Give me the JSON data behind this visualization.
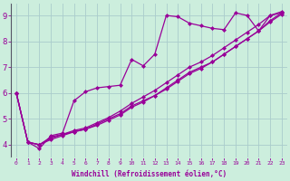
{
  "background_color": "#cceedd",
  "grid_color": "#aacccc",
  "line_color": "#990099",
  "marker": "D",
  "markersize": 2,
  "linewidth": 0.9,
  "xlabel": "Windchill (Refroidissement éolien,°C)",
  "ylabel_ticks": [
    4,
    5,
    6,
    7,
    8,
    9
  ],
  "xlim": [
    -0.5,
    23.5
  ],
  "ylim": [
    3.5,
    9.5
  ],
  "series1_x": [
    0,
    1,
    2,
    3,
    4,
    5,
    6,
    7,
    8,
    9,
    10,
    11,
    12,
    13,
    14,
    15,
    16,
    17,
    18,
    19,
    20,
    21,
    22,
    23
  ],
  "series1_y": [
    6.0,
    4.1,
    3.85,
    4.35,
    4.45,
    5.7,
    6.05,
    6.2,
    6.25,
    6.3,
    7.3,
    7.05,
    7.5,
    9.0,
    8.95,
    8.7,
    8.6,
    8.5,
    8.45,
    9.1,
    9.0,
    8.4,
    9.0,
    9.1
  ],
  "series2_x": [
    0,
    1,
    2,
    3,
    4,
    5,
    6,
    7,
    8,
    9,
    10,
    11,
    12,
    13,
    14,
    15,
    16,
    17,
    18,
    19,
    20,
    21,
    22,
    23
  ],
  "series2_y": [
    6.0,
    4.1,
    4.0,
    4.3,
    4.4,
    4.5,
    4.6,
    4.8,
    5.0,
    5.2,
    5.5,
    5.7,
    5.9,
    6.2,
    6.5,
    6.8,
    7.0,
    7.2,
    7.5,
    7.8,
    8.1,
    8.4,
    8.8,
    9.1
  ],
  "series3_x": [
    0,
    1,
    2,
    3,
    4,
    5,
    6,
    7,
    8,
    9,
    10,
    11,
    12,
    13,
    14,
    15,
    16,
    17,
    18,
    19,
    20,
    21,
    22,
    23
  ],
  "series3_y": [
    6.0,
    4.1,
    4.0,
    4.25,
    4.4,
    4.55,
    4.65,
    4.85,
    5.05,
    5.3,
    5.6,
    5.85,
    6.1,
    6.4,
    6.7,
    7.0,
    7.2,
    7.45,
    7.75,
    8.05,
    8.35,
    8.65,
    9.0,
    9.15
  ],
  "series4_x": [
    0,
    1,
    2,
    3,
    4,
    5,
    6,
    7,
    8,
    9,
    10,
    11,
    12,
    13,
    14,
    15,
    16,
    17,
    18,
    19,
    20,
    21,
    22,
    23
  ],
  "series4_y": [
    6.0,
    4.1,
    4.0,
    4.2,
    4.35,
    4.5,
    4.6,
    4.75,
    4.95,
    5.15,
    5.45,
    5.65,
    5.9,
    6.15,
    6.45,
    6.75,
    6.95,
    7.2,
    7.5,
    7.8,
    8.1,
    8.4,
    8.75,
    9.05
  ],
  "left_spine_color": "#555566",
  "xlabel_fontsize": 5.5,
  "ylabel_fontsize": 6.0,
  "xtick_fontsize": 4.5,
  "ytick_fontsize": 6.5
}
